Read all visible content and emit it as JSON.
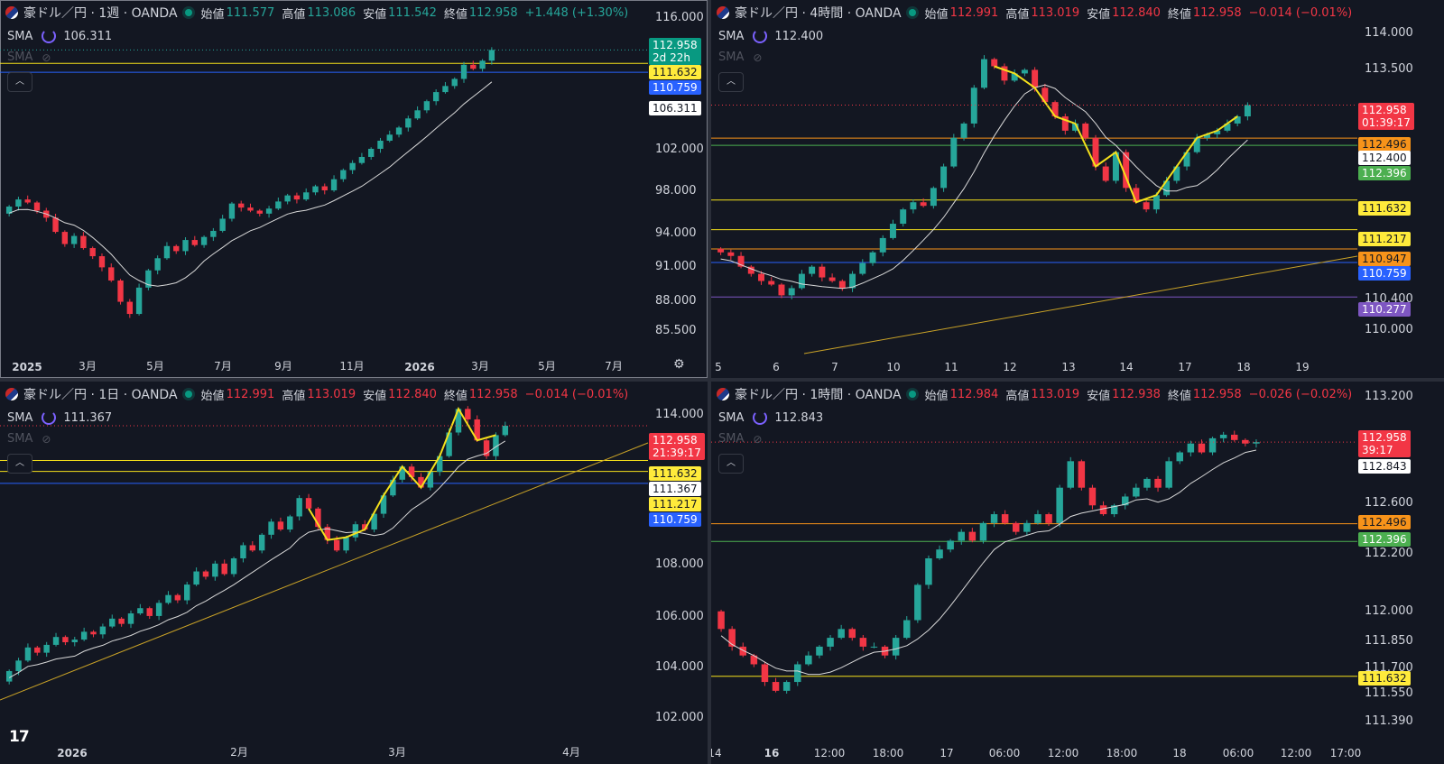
{
  "labels": {
    "open": "始値",
    "high": "高値",
    "low": "安値",
    "close": "終値",
    "sma": "SMA",
    "collapse": "︿",
    "tv": "17"
  },
  "colors": {
    "up": "#26a69a",
    "down": "#f23645",
    "sma": "#d9d9d9",
    "yellow": "#f5e11b",
    "orange": "#f7931a",
    "blue": "#2962ff",
    "green": "#4caf50",
    "purple": "#7e57c2",
    "white": "#ffffff"
  },
  "panes": [
    {
      "id": "weekly",
      "symbol": "豪ドル／円 · 1週 · OANDA",
      "open": "111.577",
      "high": "113.086",
      "low": "111.542",
      "close": "112.958",
      "change": "+1.448 (+1.30%)",
      "dir": "up",
      "sma_value": "106.311",
      "y_ticks": [
        "116.000",
        "102.000",
        "98.000",
        "94.000",
        "91.000",
        "88.000",
        "85.500"
      ],
      "x_ticks": [
        {
          "t": "2025",
          "b": true
        },
        {
          "t": "3月"
        },
        {
          "t": "5月"
        },
        {
          "t": "7月"
        },
        {
          "t": "9月"
        },
        {
          "t": "11月"
        },
        {
          "t": "2026",
          "b": true
        },
        {
          "t": "3月"
        },
        {
          "t": "5月"
        },
        {
          "t": "7月"
        }
      ],
      "price_labels": [
        {
          "v": "112.958",
          "sub": "2d 22h",
          "bg": "#089981",
          "fg": "#ffffff"
        },
        {
          "v": "111.632",
          "bg": "#ffeb3b",
          "fg": "#131722"
        },
        {
          "v": "110.759",
          "bg": "#2962ff",
          "fg": "#ffffff"
        },
        {
          "v": "106.311",
          "bg": "#ffffff",
          "fg": "#131722"
        }
      ]
    },
    {
      "id": "h4",
      "symbol": "豪ドル／円 · 4時間 · OANDA",
      "open": "112.991",
      "high": "113.019",
      "low": "112.840",
      "close": "112.958",
      "change": "−0.014 (−0.01%)",
      "dir": "dn",
      "sma_value": "112.400",
      "y_ticks": [
        "114.000",
        "113.500",
        "110.400",
        "110.000"
      ],
      "x_ticks": [
        {
          "t": "5"
        },
        {
          "t": "6"
        },
        {
          "t": "7"
        },
        {
          "t": "10"
        },
        {
          "t": "11"
        },
        {
          "t": "12"
        },
        {
          "t": "13"
        },
        {
          "t": "14"
        },
        {
          "t": "17"
        },
        {
          "t": "18"
        },
        {
          "t": "19"
        }
      ],
      "price_labels": [
        {
          "v": "112.958",
          "sub": "01:39:17",
          "bg": "#f23645",
          "fg": "#ffffff"
        },
        {
          "v": "112.496",
          "bg": "#f7931a",
          "fg": "#131722"
        },
        {
          "v": "112.400",
          "bg": "#ffffff",
          "fg": "#131722"
        },
        {
          "v": "112.396",
          "bg": "#4caf50",
          "fg": "#ffffff"
        },
        {
          "v": "111.632",
          "bg": "#ffeb3b",
          "fg": "#131722"
        },
        {
          "v": "111.217",
          "bg": "#ffeb3b",
          "fg": "#131722"
        },
        {
          "v": "110.947",
          "bg": "#f7931a",
          "fg": "#131722"
        },
        {
          "v": "110.759",
          "bg": "#2962ff",
          "fg": "#ffffff"
        },
        {
          "v": "110.277",
          "bg": "#7e57c2",
          "fg": "#ffffff"
        }
      ]
    },
    {
      "id": "daily",
      "symbol": "豪ドル／円 · 1日 · OANDA",
      "open": "112.991",
      "high": "113.019",
      "low": "112.840",
      "close": "112.958",
      "change": "−0.014 (−0.01%)",
      "dir": "dn",
      "sma_value": "111.367",
      "y_ticks": [
        "114.000",
        "108.000",
        "106.000",
        "104.000",
        "102.000"
      ],
      "x_ticks": [
        {
          "t": "2026",
          "b": true
        },
        {
          "t": "2月"
        },
        {
          "t": "3月"
        },
        {
          "t": "4月"
        }
      ],
      "price_labels": [
        {
          "v": "112.958",
          "sub": "21:39:17",
          "bg": "#f23645",
          "fg": "#ffffff"
        },
        {
          "v": "111.632",
          "bg": "#ffeb3b",
          "fg": "#131722"
        },
        {
          "v": "111.367",
          "bg": "#ffffff",
          "fg": "#131722"
        },
        {
          "v": "111.217",
          "bg": "#ffeb3b",
          "fg": "#131722"
        },
        {
          "v": "110.759",
          "bg": "#2962ff",
          "fg": "#ffffff"
        }
      ]
    },
    {
      "id": "h1",
      "symbol": "豪ドル／円 · 1時間 · OANDA",
      "open": "112.984",
      "high": "113.019",
      "low": "112.938",
      "close": "112.958",
      "change": "−0.026 (−0.02%)",
      "dir": "dn",
      "sma_value": "112.843",
      "y_ticks": [
        "113.200",
        "112.600",
        "112.200",
        "112.000",
        "111.850",
        "111.700",
        "111.550",
        "111.390"
      ],
      "x_ticks": [
        {
          "t": "14"
        },
        {
          "t": "16",
          "b": true
        },
        {
          "t": "12:00"
        },
        {
          "t": "18:00"
        },
        {
          "t": "17"
        },
        {
          "t": "06:00"
        },
        {
          "t": "12:00"
        },
        {
          "t": "18:00"
        },
        {
          "t": "18"
        },
        {
          "t": "06:00"
        },
        {
          "t": "12:00"
        },
        {
          "t": "17:00"
        }
      ],
      "price_labels": [
        {
          "v": "112.958",
          "sub": "39:17",
          "bg": "#f23645",
          "fg": "#ffffff"
        },
        {
          "v": "112.843",
          "bg": "#ffffff",
          "fg": "#131722"
        },
        {
          "v": "112.496",
          "bg": "#f7931a",
          "fg": "#131722"
        },
        {
          "v": "112.396",
          "bg": "#4caf50",
          "fg": "#ffffff"
        },
        {
          "v": "111.632",
          "bg": "#ffeb3b",
          "fg": "#131722"
        }
      ]
    }
  ],
  "chart_data": [
    {
      "type": "candlestick",
      "title": "豪ドル／円 · 1週 · OANDA",
      "ylim": [
        84.5,
        117
      ],
      "x_ticks": [
        "2025",
        "3月",
        "5月",
        "7月",
        "9月",
        "11月",
        "2026",
        "3月",
        "5月",
        "7月"
      ],
      "close_series": [
        97.5,
        98.2,
        97.9,
        97.1,
        96.4,
        95.0,
        93.8,
        94.6,
        93.4,
        92.6,
        91.5,
        90.2,
        88.1,
        86.9,
        89.5,
        91.2,
        92.4,
        93.6,
        93.1,
        94.2,
        93.7,
        94.5,
        95.1,
        96.3,
        97.8,
        97.4,
        97.1,
        96.8,
        97.3,
        98.0,
        98.6,
        98.2,
        98.9,
        99.5,
        99.1,
        100.2,
        101.1,
        101.8,
        102.4,
        103.2,
        104.0,
        104.6,
        105.3,
        106.2,
        107.0,
        107.9,
        108.8,
        109.4,
        110.1,
        111.5,
        111.1,
        111.9,
        112.958
      ],
      "horizontal_levels": [
        {
          "v": 111.632,
          "color": "yellow"
        },
        {
          "v": 110.759,
          "color": "blue"
        }
      ],
      "sma": 106.311
    },
    {
      "type": "candlestick",
      "title": "豪ドル／円 · 4時間 · OANDA",
      "ylim": [
        109.7,
        114.3
      ],
      "x_ticks": [
        "5",
        "6",
        "7",
        "10",
        "11",
        "12",
        "13",
        "14",
        "17",
        "18",
        "19"
      ],
      "close_series": [
        110.9,
        110.85,
        110.7,
        110.6,
        110.5,
        110.45,
        110.3,
        110.4,
        110.6,
        110.7,
        110.55,
        110.5,
        110.4,
        110.6,
        110.75,
        110.9,
        111.1,
        111.3,
        111.5,
        111.6,
        111.55,
        111.8,
        112.1,
        112.5,
        112.7,
        113.2,
        113.6,
        113.5,
        113.3,
        113.4,
        113.45,
        113.2,
        113.0,
        112.8,
        112.6,
        112.7,
        112.5,
        112.1,
        111.9,
        112.3,
        111.8,
        111.6,
        111.5,
        111.7,
        111.9,
        112.1,
        112.3,
        112.5,
        112.55,
        112.6,
        112.7,
        112.8,
        112.958
      ],
      "horizontal_levels": [
        {
          "v": 112.496,
          "color": "orange"
        },
        {
          "v": 112.396,
          "color": "green"
        },
        {
          "v": 111.632,
          "color": "yellow"
        },
        {
          "v": 111.217,
          "color": "yellow"
        },
        {
          "v": 110.947,
          "color": "orange"
        },
        {
          "v": 110.759,
          "color": "blue"
        },
        {
          "v": 110.277,
          "color": "purple"
        }
      ],
      "sma": 112.4
    },
    {
      "type": "candlestick",
      "title": "豪ドル／円 · 1日 · OANDA",
      "ylim": [
        101.5,
        114.3
      ],
      "x_ticks": [
        "2026",
        "2月",
        "3月",
        "4月"
      ],
      "close_series": [
        103.6,
        104.0,
        104.5,
        104.3,
        104.6,
        104.9,
        104.7,
        104.8,
        105.1,
        105.0,
        105.3,
        105.6,
        105.4,
        105.8,
        106.0,
        105.7,
        106.2,
        106.5,
        106.3,
        106.9,
        107.4,
        107.2,
        107.7,
        107.3,
        107.9,
        108.4,
        108.2,
        108.8,
        109.3,
        109.0,
        109.5,
        110.2,
        109.8,
        109.1,
        108.6,
        108.2,
        108.7,
        109.2,
        109.0,
        109.6,
        110.3,
        110.9,
        111.4,
        111.0,
        110.6,
        111.2,
        111.8,
        112.7,
        113.6,
        113.2,
        112.4,
        111.8,
        112.6,
        112.958
      ],
      "horizontal_levels": [
        {
          "v": 111.632,
          "color": "yellow"
        },
        {
          "v": 111.217,
          "color": "yellow"
        },
        {
          "v": 110.759,
          "color": "blue"
        }
      ],
      "sma": 111.367
    },
    {
      "type": "candlestick",
      "title": "豪ドル／円 · 1時間 · OANDA",
      "ylim": [
        111.35,
        113.25
      ],
      "x_ticks": [
        "14",
        "16",
        "12:00",
        "18:00",
        "17",
        "06:00",
        "12:00",
        "18:00",
        "18",
        "06:00",
        "12:00",
        "17:00"
      ],
      "close_series": [
        111.9,
        111.8,
        111.75,
        111.7,
        111.6,
        111.55,
        111.6,
        111.7,
        111.75,
        111.8,
        111.85,
        111.9,
        111.85,
        111.8,
        111.8,
        111.75,
        111.85,
        111.95,
        112.15,
        112.3,
        112.35,
        112.4,
        112.45,
        112.4,
        112.5,
        112.55,
        112.5,
        112.45,
        112.5,
        112.55,
        112.5,
        112.7,
        112.85,
        112.7,
        112.6,
        112.55,
        112.6,
        112.65,
        112.7,
        112.75,
        112.7,
        112.85,
        112.9,
        112.95,
        112.9,
        112.98,
        113.0,
        112.97,
        112.95,
        112.958
      ],
      "horizontal_levels": [
        {
          "v": 112.496,
          "color": "orange"
        },
        {
          "v": 112.396,
          "color": "green"
        },
        {
          "v": 111.632,
          "color": "yellow"
        }
      ],
      "sma": 112.843
    }
  ]
}
